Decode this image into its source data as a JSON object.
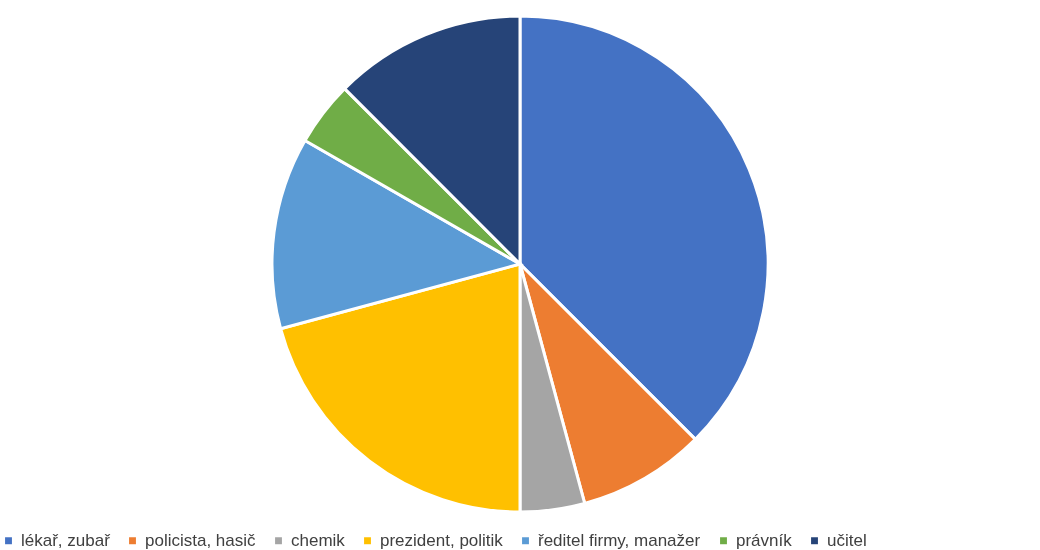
{
  "chart_data": {
    "type": "pie",
    "categories": [
      "lékař, zubař",
      "policista, hasič",
      "chemik",
      "prezident, politik",
      "ředitel firmy, manažer",
      "právník",
      "učitel"
    ],
    "values": [
      37.5,
      8.3,
      4.2,
      20.8,
      12.5,
      4.2,
      12.5
    ],
    "colors": [
      "#4472c4",
      "#ed7d31",
      "#a5a5a5",
      "#ffc000",
      "#5b9bd5",
      "#70ad47",
      "#264478"
    ],
    "legend": "bottom"
  }
}
